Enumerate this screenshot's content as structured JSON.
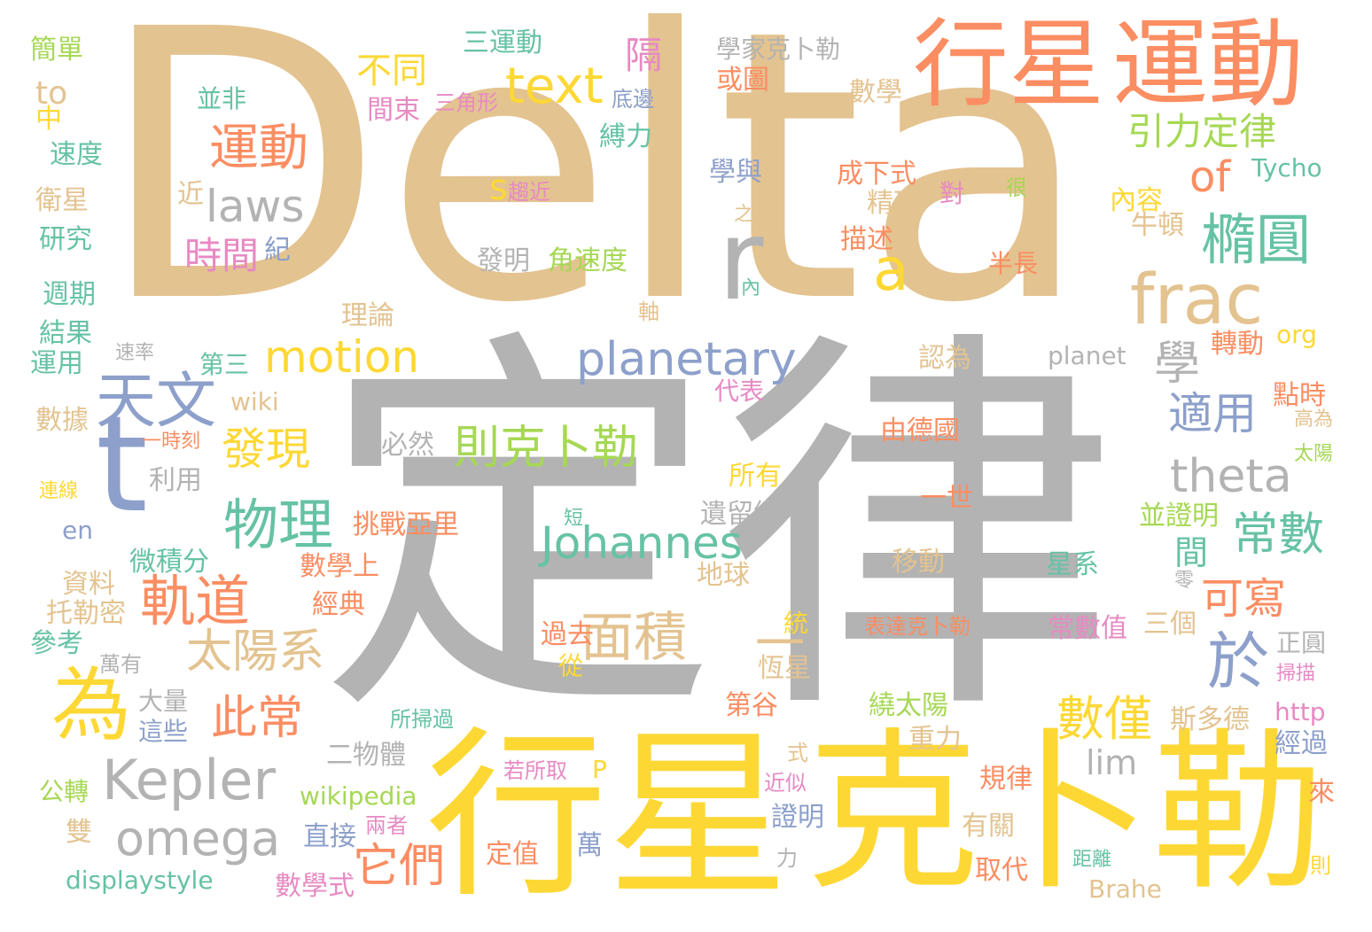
{
  "palette": {
    "tan": "#e3c390",
    "gray": "#b3b3b3",
    "yellow": "#fdd835",
    "orange": "#fb8d62",
    "green": "#66c2a5",
    "blue": "#8da0cb",
    "pink": "#e78ac3",
    "lime": "#a6d854"
  },
  "words": [
    {
      "text": "Delta",
      "color": "tan"
    },
    {
      "text": "定律",
      "color": "gray"
    },
    {
      "text": "行星",
      "color": "yellow"
    },
    {
      "text": "克卜勒",
      "color": "yellow"
    },
    {
      "text": "行星",
      "color": "orange"
    },
    {
      "text": "運動",
      "color": "orange"
    },
    {
      "text": "t",
      "color": "blue"
    },
    {
      "text": "r",
      "color": "gray"
    },
    {
      "text": "frac",
      "color": "tan"
    },
    {
      "text": "Kepler",
      "color": "gray"
    },
    {
      "text": "為",
      "color": "yellow"
    },
    {
      "text": "text",
      "color": "yellow"
    },
    {
      "text": "天文",
      "color": "blue"
    },
    {
      "text": "omega",
      "color": "gray"
    },
    {
      "text": "planetary",
      "color": "blue"
    },
    {
      "text": "theta",
      "color": "gray"
    },
    {
      "text": "Johannes",
      "color": "green"
    },
    {
      "text": "motion",
      "color": "yellow"
    },
    {
      "text": "laws",
      "color": "gray"
    },
    {
      "text": "面積",
      "color": "tan"
    },
    {
      "text": "太陽系",
      "color": "tan"
    },
    {
      "text": "物理",
      "color": "green"
    },
    {
      "text": "軌道",
      "color": "orange"
    },
    {
      "text": "則克卜勒",
      "color": "lime"
    },
    {
      "text": "運動",
      "color": "orange"
    },
    {
      "text": "橢圓",
      "color": "green"
    },
    {
      "text": "於",
      "color": "blue"
    },
    {
      "text": "a",
      "color": "yellow"
    },
    {
      "text": "of",
      "color": "orange"
    },
    {
      "text": "發現",
      "color": "yellow"
    },
    {
      "text": "此常",
      "color": "orange"
    },
    {
      "text": "它們",
      "color": "orange"
    },
    {
      "text": "數僅",
      "color": "yellow"
    },
    {
      "text": "常數",
      "color": "green"
    },
    {
      "text": "適用",
      "color": "blue"
    },
    {
      "text": "可寫",
      "color": "orange"
    },
    {
      "text": "學",
      "color": "gray"
    },
    {
      "text": "引力定律",
      "color": "lime"
    },
    {
      "text": "不同",
      "color": "yellow"
    },
    {
      "text": "時間",
      "color": "pink"
    },
    {
      "text": "s",
      "color": "yellow"
    },
    {
      "text": "隔",
      "color": "pink"
    },
    {
      "text": "三運動",
      "color": "green"
    },
    {
      "text": "間",
      "color": "green"
    },
    {
      "text": "lim",
      "color": "gray"
    },
    {
      "text": "一",
      "color": "tan"
    },
    {
      "text": "學家克卜勒",
      "color": "gray"
    },
    {
      "text": "並非",
      "color": "green"
    },
    {
      "text": "三角形",
      "color": "pink"
    },
    {
      "text": "間束",
      "color": "pink"
    },
    {
      "text": "底邊",
      "color": "blue"
    },
    {
      "text": "或圖",
      "color": "orange"
    },
    {
      "text": "數學",
      "color": "tan"
    },
    {
      "text": "縛力",
      "color": "green"
    },
    {
      "text": "學與",
      "color": "blue"
    },
    {
      "text": "成下式",
      "color": "orange"
    },
    {
      "text": "精確",
      "color": "tan"
    },
    {
      "text": "對",
      "color": "pink"
    },
    {
      "text": "很",
      "color": "lime"
    },
    {
      "text": "內容",
      "color": "yellow"
    },
    {
      "text": "Tycho",
      "color": "green"
    },
    {
      "text": "趨近",
      "color": "pink"
    },
    {
      "text": "近",
      "color": "tan"
    },
    {
      "text": "紀",
      "color": "blue"
    },
    {
      "text": "之間",
      "color": "tan"
    },
    {
      "text": "描述",
      "color": "orange"
    },
    {
      "text": "牛頓",
      "color": "tan"
    },
    {
      "text": "發明",
      "color": "gray"
    },
    {
      "text": "角速度",
      "color": "lime"
    },
    {
      "text": "半長",
      "color": "orange"
    },
    {
      "text": "內",
      "color": "green"
    },
    {
      "text": "理論",
      "color": "tan"
    },
    {
      "text": "軸",
      "color": "tan"
    },
    {
      "text": "planet",
      "color": "gray"
    },
    {
      "text": "第三",
      "color": "green"
    },
    {
      "text": "org",
      "color": "yellow"
    },
    {
      "text": "轉動",
      "color": "orange"
    },
    {
      "text": "認為",
      "color": "tan"
    },
    {
      "text": "代表",
      "color": "pink"
    },
    {
      "text": "wiki",
      "color": "tan"
    },
    {
      "text": "點時",
      "color": "orange"
    },
    {
      "text": "高為",
      "color": "tan"
    },
    {
      "text": "一時刻",
      "color": "orange"
    },
    {
      "text": "必然",
      "color": "gray"
    },
    {
      "text": "由德國",
      "color": "orange"
    },
    {
      "text": "太陽",
      "color": "lime"
    },
    {
      "text": "利用",
      "color": "gray"
    },
    {
      "text": "所有",
      "color": "yellow"
    },
    {
      "text": "一世",
      "color": "orange"
    },
    {
      "text": "並證明",
      "color": "lime"
    },
    {
      "text": "短",
      "color": "green"
    },
    {
      "text": "遺留給",
      "color": "gray"
    },
    {
      "text": "挑戰亞里",
      "color": "orange"
    },
    {
      "text": "微積分",
      "color": "green"
    },
    {
      "text": "移動",
      "color": "tan"
    },
    {
      "text": "星系",
      "color": "green"
    },
    {
      "text": "數學上",
      "color": "orange"
    },
    {
      "text": "地球",
      "color": "tan"
    },
    {
      "text": "經典",
      "color": "orange"
    },
    {
      "text": "零",
      "color": "gray"
    },
    {
      "text": "過去",
      "color": "orange"
    },
    {
      "text": "統",
      "color": "yellow"
    },
    {
      "text": "表達克卜勒",
      "color": "orange"
    },
    {
      "text": "常數值",
      "color": "pink"
    },
    {
      "text": "三個",
      "color": "tan"
    },
    {
      "text": "正圓",
      "color": "gray"
    },
    {
      "text": "從",
      "color": "yellow"
    },
    {
      "text": "恆星",
      "color": "tan"
    },
    {
      "text": "掃描",
      "color": "pink"
    },
    {
      "text": "大量",
      "color": "gray"
    },
    {
      "text": "這些",
      "color": "blue"
    },
    {
      "text": "第谷",
      "color": "orange"
    },
    {
      "text": "繞太陽",
      "color": "lime"
    },
    {
      "text": "斯多德",
      "color": "tan"
    },
    {
      "text": "http",
      "color": "pink"
    },
    {
      "text": "所掃過",
      "color": "green"
    },
    {
      "text": "重力",
      "color": "tan"
    },
    {
      "text": "經過",
      "color": "blue"
    },
    {
      "text": "二物體",
      "color": "gray"
    },
    {
      "text": "式",
      "color": "tan"
    },
    {
      "text": "若所取",
      "color": "pink"
    },
    {
      "text": "P",
      "color": "yellow"
    },
    {
      "text": "規律",
      "color": "orange"
    },
    {
      "text": "近似",
      "color": "pink"
    },
    {
      "text": "wikipedia",
      "color": "lime"
    },
    {
      "text": "來",
      "color": "orange"
    },
    {
      "text": "證明",
      "color": "blue"
    },
    {
      "text": "兩者",
      "color": "pink"
    },
    {
      "text": "直接",
      "color": "blue"
    },
    {
      "text": "萬",
      "color": "blue"
    },
    {
      "text": "有關",
      "color": "tan"
    },
    {
      "text": "定值",
      "color": "orange"
    },
    {
      "text": "力",
      "color": "gray"
    },
    {
      "text": "距離",
      "color": "green"
    },
    {
      "text": "則",
      "color": "yellow"
    },
    {
      "text": "數學式",
      "color": "pink"
    },
    {
      "text": "取代",
      "color": "orange"
    },
    {
      "text": "Brahe",
      "color": "tan"
    },
    {
      "text": "displaystyle",
      "color": "green"
    },
    {
      "text": "簡單",
      "color": "lime"
    },
    {
      "text": "to",
      "color": "tan"
    },
    {
      "text": "中",
      "color": "yellow"
    },
    {
      "text": "速度",
      "color": "green"
    },
    {
      "text": "衛星",
      "color": "tan"
    },
    {
      "text": "研究",
      "color": "green"
    },
    {
      "text": "週期",
      "color": "green"
    },
    {
      "text": "結果",
      "color": "green"
    },
    {
      "text": "運用",
      "color": "green"
    },
    {
      "text": "速率",
      "color": "gray"
    },
    {
      "text": "數據",
      "color": "tan"
    },
    {
      "text": "連線",
      "color": "yellow"
    },
    {
      "text": "en",
      "color": "blue"
    },
    {
      "text": "資料",
      "color": "tan"
    },
    {
      "text": "托勒密",
      "color": "tan"
    },
    {
      "text": "參考",
      "color": "green"
    },
    {
      "text": "萬有",
      "color": "gray"
    },
    {
      "text": "公轉",
      "color": "lime"
    },
    {
      "text": "雙",
      "color": "tan"
    }
  ]
}
